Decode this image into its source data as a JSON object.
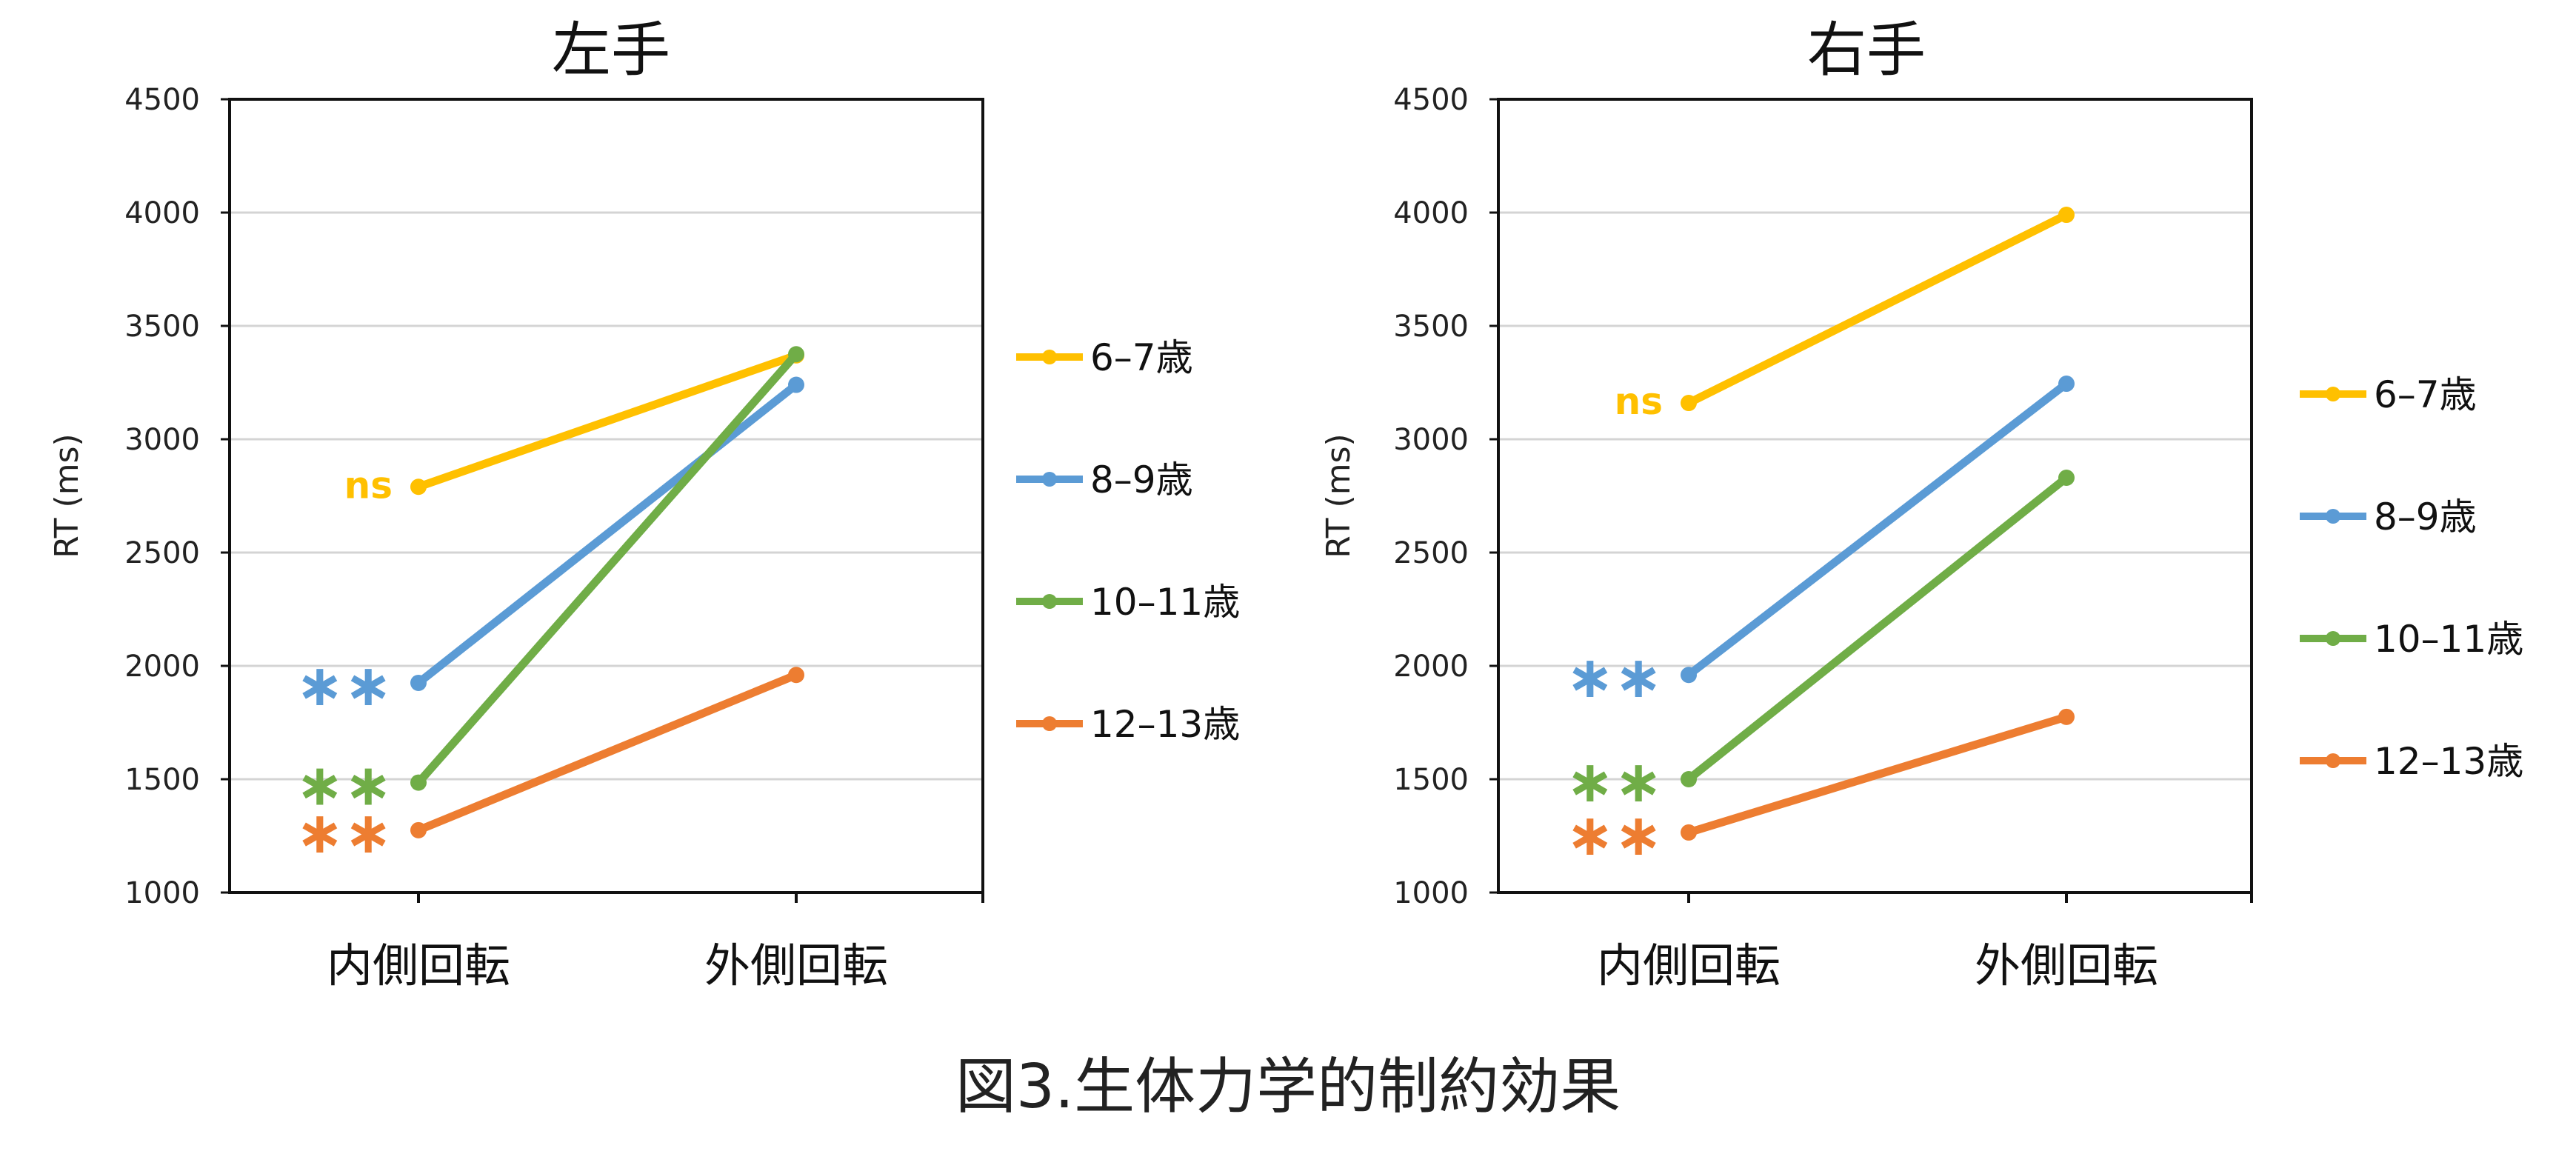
{
  "figure_caption": "図3.生体力学的制約効果",
  "chart_data": [
    {
      "type": "line",
      "title": "左手",
      "xlabel": "",
      "ylabel": "RT (ms)",
      "categories": [
        "内側回転",
        "外側回転"
      ],
      "ylim": [
        1000,
        4500
      ],
      "yticks": [
        "1000",
        "1500",
        "2000",
        "2500",
        "3000",
        "3500",
        "4000",
        "4500"
      ],
      "grid": true,
      "legend_position": "right",
      "series": [
        {
          "name": "6–7歳",
          "color": "#FFC000",
          "values": [
            2790,
            3370
          ],
          "significance": "ns"
        },
        {
          "name": "8–9歳",
          "color": "#5B9BD5",
          "values": [
            1925,
            3240
          ],
          "significance": "∗∗"
        },
        {
          "name": "10–11歳",
          "color": "#70AD47",
          "values": [
            1485,
            3375
          ],
          "significance": "∗∗"
        },
        {
          "name": "12–13歳",
          "color": "#ED7D31",
          "values": [
            1275,
            1960
          ],
          "significance": "∗∗"
        }
      ]
    },
    {
      "type": "line",
      "title": "右手",
      "xlabel": "",
      "ylabel": "RT (ms)",
      "categories": [
        "内側回転",
        "外側回転"
      ],
      "ylim": [
        1000,
        4500
      ],
      "yticks": [
        "1000",
        "1500",
        "2000",
        "2500",
        "3000",
        "3500",
        "4000",
        "4500"
      ],
      "grid": true,
      "legend_position": "right",
      "series": [
        {
          "name": "6–7歳",
          "color": "#FFC000",
          "values": [
            3160,
            3990
          ],
          "significance": "ns"
        },
        {
          "name": "8–9歳",
          "color": "#5B9BD5",
          "values": [
            1960,
            3245
          ],
          "significance": "∗∗"
        },
        {
          "name": "10–11歳",
          "color": "#70AD47",
          "values": [
            1500,
            2830
          ],
          "significance": "∗∗"
        },
        {
          "name": "12–13歳",
          "color": "#ED7D31",
          "values": [
            1265,
            1775
          ],
          "significance": "∗∗"
        }
      ]
    }
  ]
}
